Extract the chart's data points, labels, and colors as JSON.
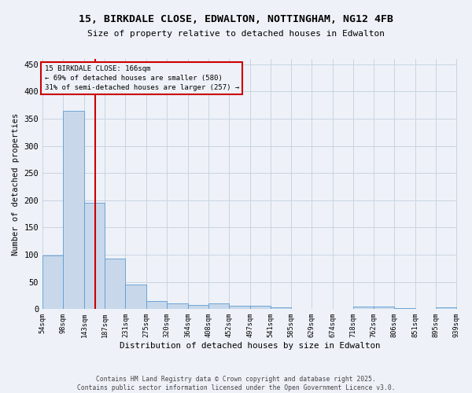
{
  "title": "15, BIRKDALE CLOSE, EDWALTON, NOTTINGHAM, NG12 4FB",
  "subtitle": "Size of property relative to detached houses in Edwalton",
  "xlabel": "Distribution of detached houses by size in Edwalton",
  "ylabel": "Number of detached properties",
  "bar_color": "#c8d8ea",
  "bar_edgecolor": "#5b9bd5",
  "grid_color": "#c8d4e0",
  "background_color": "#eef2f8",
  "annotation_box_color": "#cc0000",
  "annotation_line_color": "#cc0000",
  "vline_x": 166,
  "annotation_text": "15 BIRKDALE CLOSE: 166sqm\n← 69% of detached houses are smaller (580)\n31% of semi-detached houses are larger (257) →",
  "footer": "Contains HM Land Registry data © Crown copyright and database right 2025.\nContains public sector information licensed under the Open Government Licence v3.0.",
  "bin_edges": [
    54,
    98,
    143,
    187,
    231,
    275,
    320,
    364,
    408,
    452,
    497,
    541,
    585,
    629,
    674,
    718,
    762,
    806,
    851,
    895,
    939
  ],
  "bar_heights": [
    98,
    365,
    196,
    93,
    45,
    14,
    10,
    8,
    10,
    6,
    6,
    3,
    0,
    0,
    0,
    5,
    4,
    1,
    0,
    3
  ],
  "ylim": [
    0,
    460
  ],
  "yticks": [
    0,
    50,
    100,
    150,
    200,
    250,
    300,
    350,
    400,
    450
  ]
}
